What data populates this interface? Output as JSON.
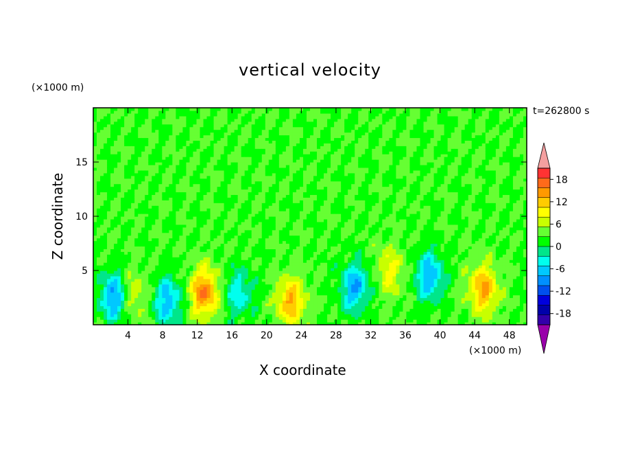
{
  "chart_data": {
    "type": "heatmap",
    "title": "vertical velocity",
    "xlabel": "X coordinate",
    "ylabel": "Z coordinate",
    "x_units": "(×1000 m)",
    "y_units": "(×1000 m)",
    "time_label": "t=262800 s",
    "xlim": [
      0,
      50
    ],
    "ylim": [
      0,
      20
    ],
    "x_ticks": [
      4,
      8,
      12,
      16,
      20,
      24,
      28,
      32,
      36,
      40,
      44,
      48
    ],
    "y_ticks": [
      5,
      10,
      15
    ],
    "colorbar": {
      "tick_labels": [
        "18",
        "12",
        "6",
        "0",
        "-6",
        "-12",
        "-18"
      ],
      "tick_values": [
        18,
        12,
        6,
        0,
        -6,
        -12,
        -18
      ],
      "levels": [
        21,
        18,
        15,
        12,
        9,
        6,
        3,
        0,
        -3,
        -6,
        -9,
        -12,
        -15,
        -18,
        -21
      ],
      "colors": [
        "#ff3333",
        "#ff6a1a",
        "#ff9900",
        "#ffcc00",
        "#ffff00",
        "#c8ff00",
        "#66ff33",
        "#00ff00",
        "#00e68a",
        "#00ffee",
        "#00c8ff",
        "#0090ff",
        "#0050ee",
        "#0000dd",
        "#0000aa",
        "#3300aa"
      ],
      "over_color": "#f4a0a0",
      "under_color": "#9900aa"
    },
    "features": [
      {
        "x": 2.4,
        "z": 2.6,
        "value": -13
      },
      {
        "x": 4.6,
        "z": 2.8,
        "value": 6
      },
      {
        "x": 8.6,
        "z": 2.2,
        "value": -11
      },
      {
        "x": 12.8,
        "z": 3.0,
        "value": 15
      },
      {
        "x": 16.8,
        "z": 3.0,
        "value": -8
      },
      {
        "x": 22.8,
        "z": 2.2,
        "value": 12
      },
      {
        "x": 30.2,
        "z": 3.5,
        "value": -12
      },
      {
        "x": 34.2,
        "z": 5.0,
        "value": 7
      },
      {
        "x": 38.8,
        "z": 4.5,
        "value": -12
      },
      {
        "x": 45.0,
        "z": 3.3,
        "value": 13
      }
    ]
  }
}
